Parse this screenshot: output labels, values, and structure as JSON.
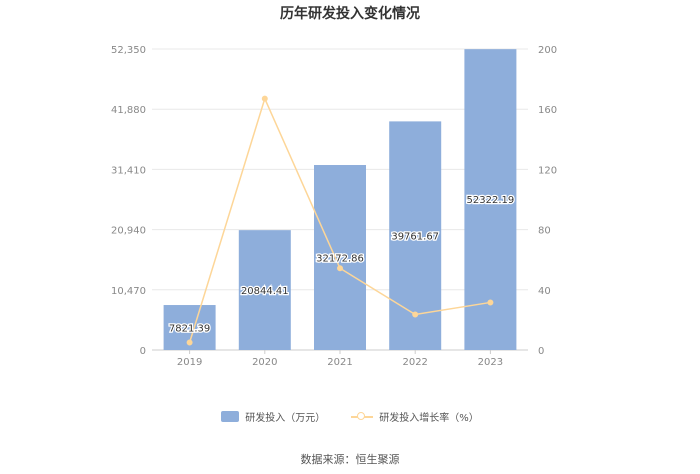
{
  "colors": {
    "bar": "#8eaedb",
    "line": "#fdd698",
    "axis_text": "#888888",
    "grid": "#e8e8e8",
    "bar_label": "#333333"
  },
  "chart_data": {
    "type": "bar",
    "title": "历年研发投入变化情况",
    "categories": [
      "2019",
      "2020",
      "2021",
      "2022",
      "2023"
    ],
    "series": [
      {
        "name": "研发投入（万元）",
        "type": "bar",
        "axis": "left",
        "values": [
          7821.39,
          20844.41,
          32172.86,
          39761.67,
          52322.19
        ],
        "labels": [
          "7821.39",
          "20844.41",
          "32172.86",
          "39761.67",
          "52322.19"
        ]
      },
      {
        "name": "研发投入增长率（%）",
        "type": "line",
        "axis": "right",
        "values": [
          5,
          167,
          54.3,
          23.6,
          31.6
        ]
      }
    ],
    "y_left": {
      "ylim": [
        0,
        52350
      ],
      "ticks": [
        0,
        10470,
        20940,
        31410,
        41880,
        52350
      ],
      "tick_labels": [
        "0",
        "10,470",
        "20,940",
        "31,410",
        "41,880",
        "52,350"
      ]
    },
    "y_right": {
      "ylim": [
        0,
        200
      ],
      "ticks": [
        0,
        40,
        80,
        120,
        160,
        200
      ],
      "tick_labels": [
        "0",
        "40",
        "80",
        "120",
        "160",
        "200"
      ]
    },
    "grid": true,
    "legend_position": "bottom"
  },
  "source": "数据来源：恒生聚源"
}
